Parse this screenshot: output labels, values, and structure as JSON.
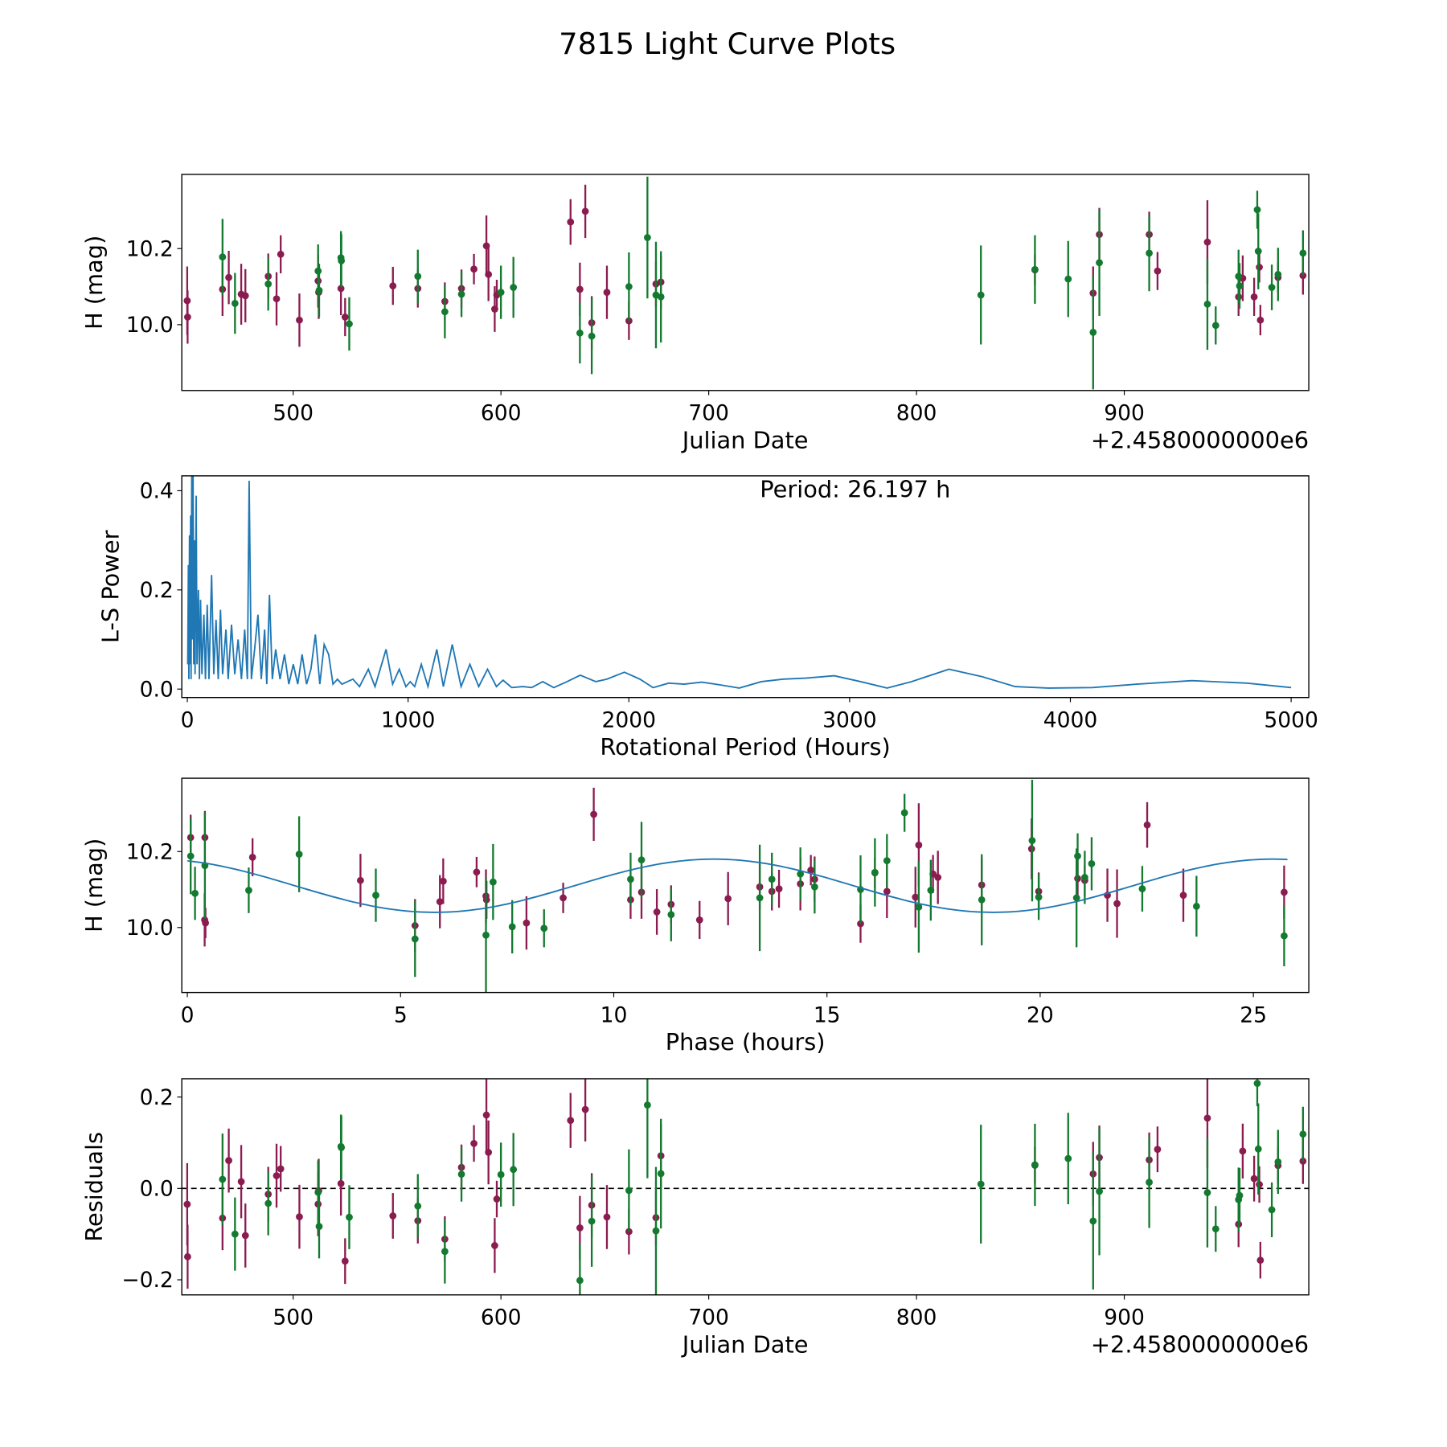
{
  "title": "7815 Light Curve Plots",
  "colors": {
    "series_a": "#8a1c50",
    "series_b": "#137a2f",
    "periodogram": "#1f77b4",
    "model": "#1f77b4"
  },
  "chart_data": [
    {
      "type": "scatter",
      "name": "light-curve",
      "xlabel": "Julian Date",
      "ylabel": "H (mag)",
      "offset_text": "+2.4580000000e6",
      "xlim": [
        446.4,
        988.8
      ],
      "ylim": [
        9.827,
        10.395
      ],
      "xticks": [
        {
          "v": 500,
          "label": "500"
        },
        {
          "v": 600,
          "label": "600"
        },
        {
          "v": 700,
          "label": "700"
        },
        {
          "v": 800,
          "label": "800"
        },
        {
          "v": 900,
          "label": "900"
        }
      ],
      "yticks": [
        {
          "v": 10.0,
          "label": "10.0"
        },
        {
          "v": 10.2,
          "label": "10.2"
        }
      ],
      "series": [
        {
          "name": "magenta",
          "points": [
            [
              449,
              10.063,
              0.09
            ],
            [
              449.2,
              10.02,
              0.07
            ],
            [
              466,
              10.093,
              0.07
            ],
            [
              469,
              10.124,
              0.07
            ],
            [
              475,
              10.08,
              0.08
            ],
            [
              477,
              10.076,
              0.07
            ],
            [
              488,
              10.127,
              0.06
            ],
            [
              492,
              10.068,
              0.07
            ],
            [
              494,
              10.185,
              0.05
            ],
            [
              503,
              10.012,
              0.07
            ],
            [
              512,
              10.115,
              0.07
            ],
            [
              512.3,
              10.085,
              0.07
            ],
            [
              523,
              10.095,
              0.07
            ],
            [
              525,
              10.02,
              0.05
            ],
            [
              548,
              10.102,
              0.05
            ],
            [
              560,
              10.095,
              0.05
            ],
            [
              573,
              10.061,
              0.05
            ],
            [
              581,
              10.095,
              0.05
            ],
            [
              587,
              10.146,
              0.04
            ],
            [
              593,
              10.207,
              0.08
            ],
            [
              594,
              10.132,
              0.07
            ],
            [
              597,
              10.041,
              0.06
            ],
            [
              598,
              10.078,
              0.04
            ],
            [
              633.5,
              10.27,
              0.06
            ],
            [
              638,
              10.093,
              0.07
            ],
            [
              640.6,
              10.298,
              0.07
            ],
            [
              643.7,
              10.005,
              0.07
            ],
            [
              651,
              10.085,
              0.07
            ],
            [
              661.6,
              10.01,
              0.05
            ],
            [
              674.6,
              10.107,
              0.06
            ],
            [
              677,
              10.112,
              0.07
            ],
            [
              857,
              10.144,
              0.04
            ],
            [
              885,
              10.083,
              0.07
            ],
            [
              888,
              10.237,
              0.07
            ],
            [
              912,
              10.237,
              0.06
            ],
            [
              916,
              10.141,
              0.05
            ],
            [
              940,
              10.217,
              0.11
            ],
            [
              955,
              10.073,
              0.05
            ],
            [
              957,
              10.122,
              0.06
            ],
            [
              962.5,
              10.073,
              0.05
            ],
            [
              965,
              10.151,
              0.04
            ],
            [
              965.5,
              10.012,
              0.04
            ],
            [
              974,
              10.124,
              0.04
            ],
            [
              986,
              10.129,
              0.05
            ]
          ]
        },
        {
          "name": "green",
          "points": [
            [
              466,
              10.178,
              0.1
            ],
            [
              472,
              10.056,
              0.08
            ],
            [
              488,
              10.107,
              0.07
            ],
            [
              512,
              10.141,
              0.07
            ],
            [
              512.5,
              10.09,
              0.07
            ],
            [
              523,
              10.176,
              0.07
            ],
            [
              523.2,
              10.168,
              0.07
            ],
            [
              527,
              10.002,
              0.07
            ],
            [
              560,
              10.127,
              0.07
            ],
            [
              573,
              10.034,
              0.07
            ],
            [
              581,
              10.08,
              0.06
            ],
            [
              600,
              10.085,
              0.07
            ],
            [
              606,
              10.098,
              0.08
            ],
            [
              638,
              9.978,
              0.08
            ],
            [
              643.7,
              9.97,
              0.1
            ],
            [
              661.6,
              10.1,
              0.09
            ],
            [
              670.5,
              10.229,
              0.16
            ],
            [
              674.6,
              10.078,
              0.14
            ],
            [
              677,
              10.073,
              0.12
            ],
            [
              831,
              10.078,
              0.13
            ],
            [
              857,
              10.145,
              0.09
            ],
            [
              873,
              10.12,
              0.1
            ],
            [
              885,
              9.98,
              0.15
            ],
            [
              888,
              10.163,
              0.14
            ],
            [
              912,
              10.188,
              0.1
            ],
            [
              940,
              10.054,
              0.12
            ],
            [
              944,
              9.998,
              0.05
            ],
            [
              955,
              10.127,
              0.07
            ],
            [
              955.5,
              10.102,
              0.06
            ],
            [
              964,
              10.302,
              0.05
            ],
            [
              964.5,
              10.193,
              0.1
            ],
            [
              971,
              10.098,
              0.06
            ],
            [
              974,
              10.132,
              0.07
            ],
            [
              986,
              10.188,
              0.06
            ]
          ]
        }
      ]
    },
    {
      "type": "line",
      "name": "periodogram",
      "xlabel": "Rotational Period (Hours)",
      "ylabel": "L-S Power",
      "annotation": "Period: 26.197 h",
      "xlim": [
        -25,
        5080
      ],
      "ylim": [
        -0.017,
        0.43
      ],
      "xticks": [
        {
          "v": 0,
          "label": "0"
        },
        {
          "v": 1000,
          "label": "1000"
        },
        {
          "v": 2000,
          "label": "2000"
        },
        {
          "v": 3000,
          "label": "3000"
        },
        {
          "v": 4000,
          "label": "4000"
        },
        {
          "v": 5000,
          "label": "5000"
        }
      ],
      "yticks": [
        {
          "v": 0,
          "label": "0.0"
        },
        {
          "v": 0.2,
          "label": "0.2"
        },
        {
          "v": 0.4,
          "label": "0.4"
        }
      ],
      "points": [
        [
          2,
          0.05
        ],
        [
          5,
          0.25
        ],
        [
          7,
          0.02
        ],
        [
          10,
          0.31
        ],
        [
          12,
          0.05
        ],
        [
          15,
          0.35
        ],
        [
          17,
          0.02
        ],
        [
          20,
          0.43
        ],
        [
          23,
          0.1
        ],
        [
          26,
          0.45
        ],
        [
          29,
          0.05
        ],
        [
          32,
          0.3
        ],
        [
          35,
          0.03
        ],
        [
          40,
          0.39
        ],
        [
          44,
          0.05
        ],
        [
          50,
          0.2
        ],
        [
          55,
          0.02
        ],
        [
          60,
          0.18
        ],
        [
          66,
          0.03
        ],
        [
          75,
          0.15
        ],
        [
          82,
          0.02
        ],
        [
          90,
          0.17
        ],
        [
          98,
          0.02
        ],
        [
          110,
          0.23
        ],
        [
          120,
          0.03
        ],
        [
          130,
          0.14
        ],
        [
          140,
          0.02
        ],
        [
          150,
          0.16
        ],
        [
          160,
          0.03
        ],
        [
          175,
          0.12
        ],
        [
          185,
          0.02
        ],
        [
          200,
          0.13
        ],
        [
          215,
          0.03
        ],
        [
          230,
          0.1
        ],
        [
          245,
          0.02
        ],
        [
          260,
          0.12
        ],
        [
          272,
          0.02
        ],
        [
          280,
          0.42
        ],
        [
          290,
          0.02
        ],
        [
          305,
          0.08
        ],
        [
          320,
          0.15
        ],
        [
          335,
          0.02
        ],
        [
          350,
          0.12
        ],
        [
          360,
          0.01
        ],
        [
          372,
          0.19
        ],
        [
          385,
          0.02
        ],
        [
          400,
          0.08
        ],
        [
          420,
          0.02
        ],
        [
          440,
          0.07
        ],
        [
          460,
          0.01
        ],
        [
          480,
          0.05
        ],
        [
          500,
          0.01
        ],
        [
          520,
          0.07
        ],
        [
          540,
          0.01
        ],
        [
          560,
          0.04
        ],
        [
          580,
          0.11
        ],
        [
          600,
          0.01
        ],
        [
          620,
          0.09
        ],
        [
          640,
          0.07
        ],
        [
          660,
          0.01
        ],
        [
          680,
          0.02
        ],
        [
          700,
          0.01
        ],
        [
          750,
          0.02
        ],
        [
          780,
          0.005
        ],
        [
          820,
          0.04
        ],
        [
          850,
          0.005
        ],
        [
          900,
          0.08
        ],
        [
          930,
          0.01
        ],
        [
          960,
          0.04
        ],
        [
          990,
          0.005
        ],
        [
          1010,
          0.015
        ],
        [
          1030,
          0.005
        ],
        [
          1060,
          0.05
        ],
        [
          1090,
          0.005
        ],
        [
          1130,
          0.08
        ],
        [
          1160,
          0.005
        ],
        [
          1200,
          0.09
        ],
        [
          1240,
          0.005
        ],
        [
          1280,
          0.05
        ],
        [
          1320,
          0.005
        ],
        [
          1360,
          0.04
        ],
        [
          1400,
          0.005
        ],
        [
          1430,
          0.018
        ],
        [
          1470,
          0.003
        ],
        [
          1520,
          0.005
        ],
        [
          1560,
          0.003
        ],
        [
          1610,
          0.015
        ],
        [
          1660,
          0.003
        ],
        [
          1720,
          0.015
        ],
        [
          1780,
          0.028
        ],
        [
          1850,
          0.015
        ],
        [
          1900,
          0.02
        ],
        [
          1980,
          0.034
        ],
        [
          2050,
          0.02
        ],
        [
          2110,
          0.003
        ],
        [
          2180,
          0.012
        ],
        [
          2250,
          0.01
        ],
        [
          2330,
          0.014
        ],
        [
          2420,
          0.008
        ],
        [
          2500,
          0.002
        ],
        [
          2600,
          0.015
        ],
        [
          2700,
          0.02
        ],
        [
          2800,
          0.022
        ],
        [
          2930,
          0.027
        ],
        [
          3050,
          0.015
        ],
        [
          3170,
          0.002
        ],
        [
          3280,
          0.015
        ],
        [
          3450,
          0.04
        ],
        [
          3600,
          0.025
        ],
        [
          3750,
          0.005
        ],
        [
          3900,
          0.002
        ],
        [
          4100,
          0.003
        ],
        [
          4300,
          0.01
        ],
        [
          4550,
          0.017
        ],
        [
          4800,
          0.012
        ],
        [
          5000,
          0.003
        ]
      ]
    },
    {
      "type": "scatter",
      "name": "phased-light-curve",
      "xlabel": "Phase (hours)",
      "ylabel": "H (mag)",
      "period_hours": 26.197,
      "epoch_jd": 447,
      "model": {
        "mean": 10.11,
        "amplitude": 0.07,
        "cycle_hours": 13.1,
        "min_phase": 5.8
      },
      "xlim": [
        -0.13,
        26.3
      ],
      "ylim": [
        9.829,
        10.393
      ],
      "xticks": [
        {
          "v": 0,
          "label": "0"
        },
        {
          "v": 5,
          "label": "5"
        },
        {
          "v": 10,
          "label": "10"
        },
        {
          "v": 15,
          "label": "15"
        },
        {
          "v": 20,
          "label": "20"
        },
        {
          "v": 25,
          "label": "25"
        }
      ],
      "yticks": [
        {
          "v": 10.0,
          "label": "10.0"
        },
        {
          "v": 10.2,
          "label": "10.2"
        }
      ]
    },
    {
      "type": "scatter",
      "name": "residuals",
      "xlabel": "Julian Date",
      "ylabel": "Residuals",
      "offset_text": "+2.4580000000e6",
      "xlim": [
        446.4,
        988.8
      ],
      "ylim": [
        -0.233,
        0.24
      ],
      "xticks": [
        {
          "v": 500,
          "label": "500"
        },
        {
          "v": 600,
          "label": "600"
        },
        {
          "v": 700,
          "label": "700"
        },
        {
          "v": 800,
          "label": "800"
        },
        {
          "v": 900,
          "label": "900"
        }
      ],
      "yticks": [
        {
          "v": -0.2,
          "label": "−0.2"
        },
        {
          "v": 0,
          "label": "0.0"
        },
        {
          "v": 0.2,
          "label": "0.2"
        }
      ]
    }
  ]
}
